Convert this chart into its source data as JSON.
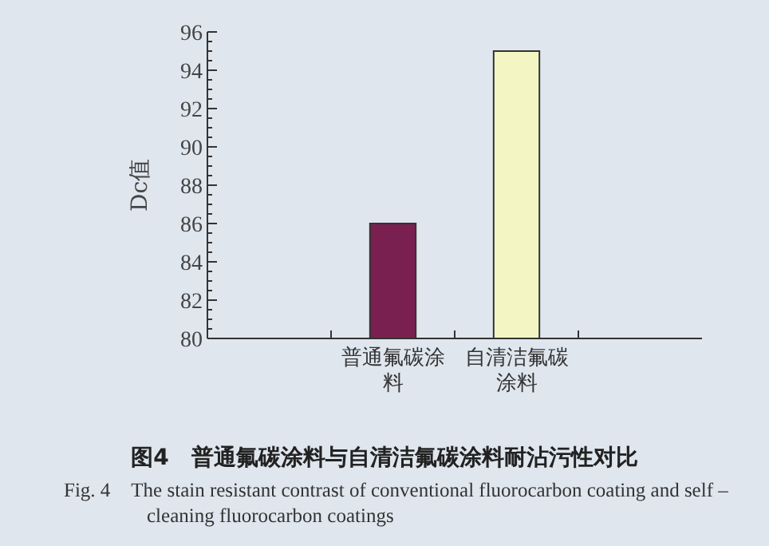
{
  "chart_data": {
    "type": "bar",
    "title": "图4　普通氟碳涂料与自清洁氟碳涂料耐沾污性对比",
    "subtitle": "Fig. 4　The stain resistant contrast of conventional fluorocarbon coating and self – cleaning fluorocarbon coatings",
    "ylabel": "Dc值",
    "categories": [
      null,
      "普通氟碳涂料",
      "自清洁氟碳涂料",
      null
    ],
    "values": [
      null,
      86,
      95,
      null
    ],
    "colors": [
      null,
      "#7a2050",
      "#f3f6c2",
      null
    ],
    "ylim": [
      80,
      96
    ],
    "yticks": [
      80,
      82,
      84,
      86,
      88,
      90,
      92,
      94,
      96
    ],
    "grid": false
  }
}
